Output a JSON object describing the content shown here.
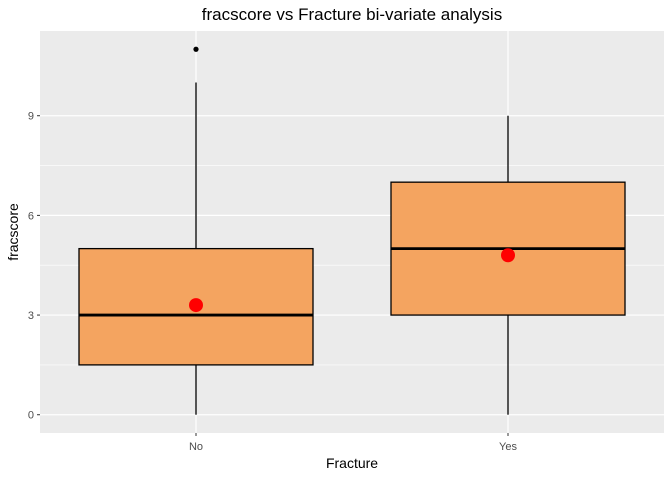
{
  "chart_data": {
    "type": "boxplot",
    "title": "fracscore vs Fracture bi-variate analysis",
    "xlabel": "Fracture",
    "ylabel": "fracscore",
    "categories": [
      "No",
      "Yes"
    ],
    "ylim": [
      -0.55,
      11.55
    ],
    "yticks": [
      0,
      3,
      6,
      9
    ],
    "grid": true,
    "boxes": [
      {
        "category": "No",
        "whisker_low": 0,
        "q1": 1.5,
        "median": 3,
        "q3": 5,
        "whisker_high": 10,
        "mean": 3.3,
        "outliers": [
          11
        ]
      },
      {
        "category": "Yes",
        "whisker_low": 0,
        "q1": 3,
        "median": 5,
        "q3": 7,
        "whisker_high": 9,
        "mean": 4.8,
        "outliers": []
      }
    ]
  },
  "colors": {
    "panel_bg": "#ebebeb",
    "grid": "#ffffff",
    "box_fill": "#f4a460",
    "box_stroke": "#000000",
    "mean_point": "#ff0000",
    "outlier": "#000000"
  }
}
